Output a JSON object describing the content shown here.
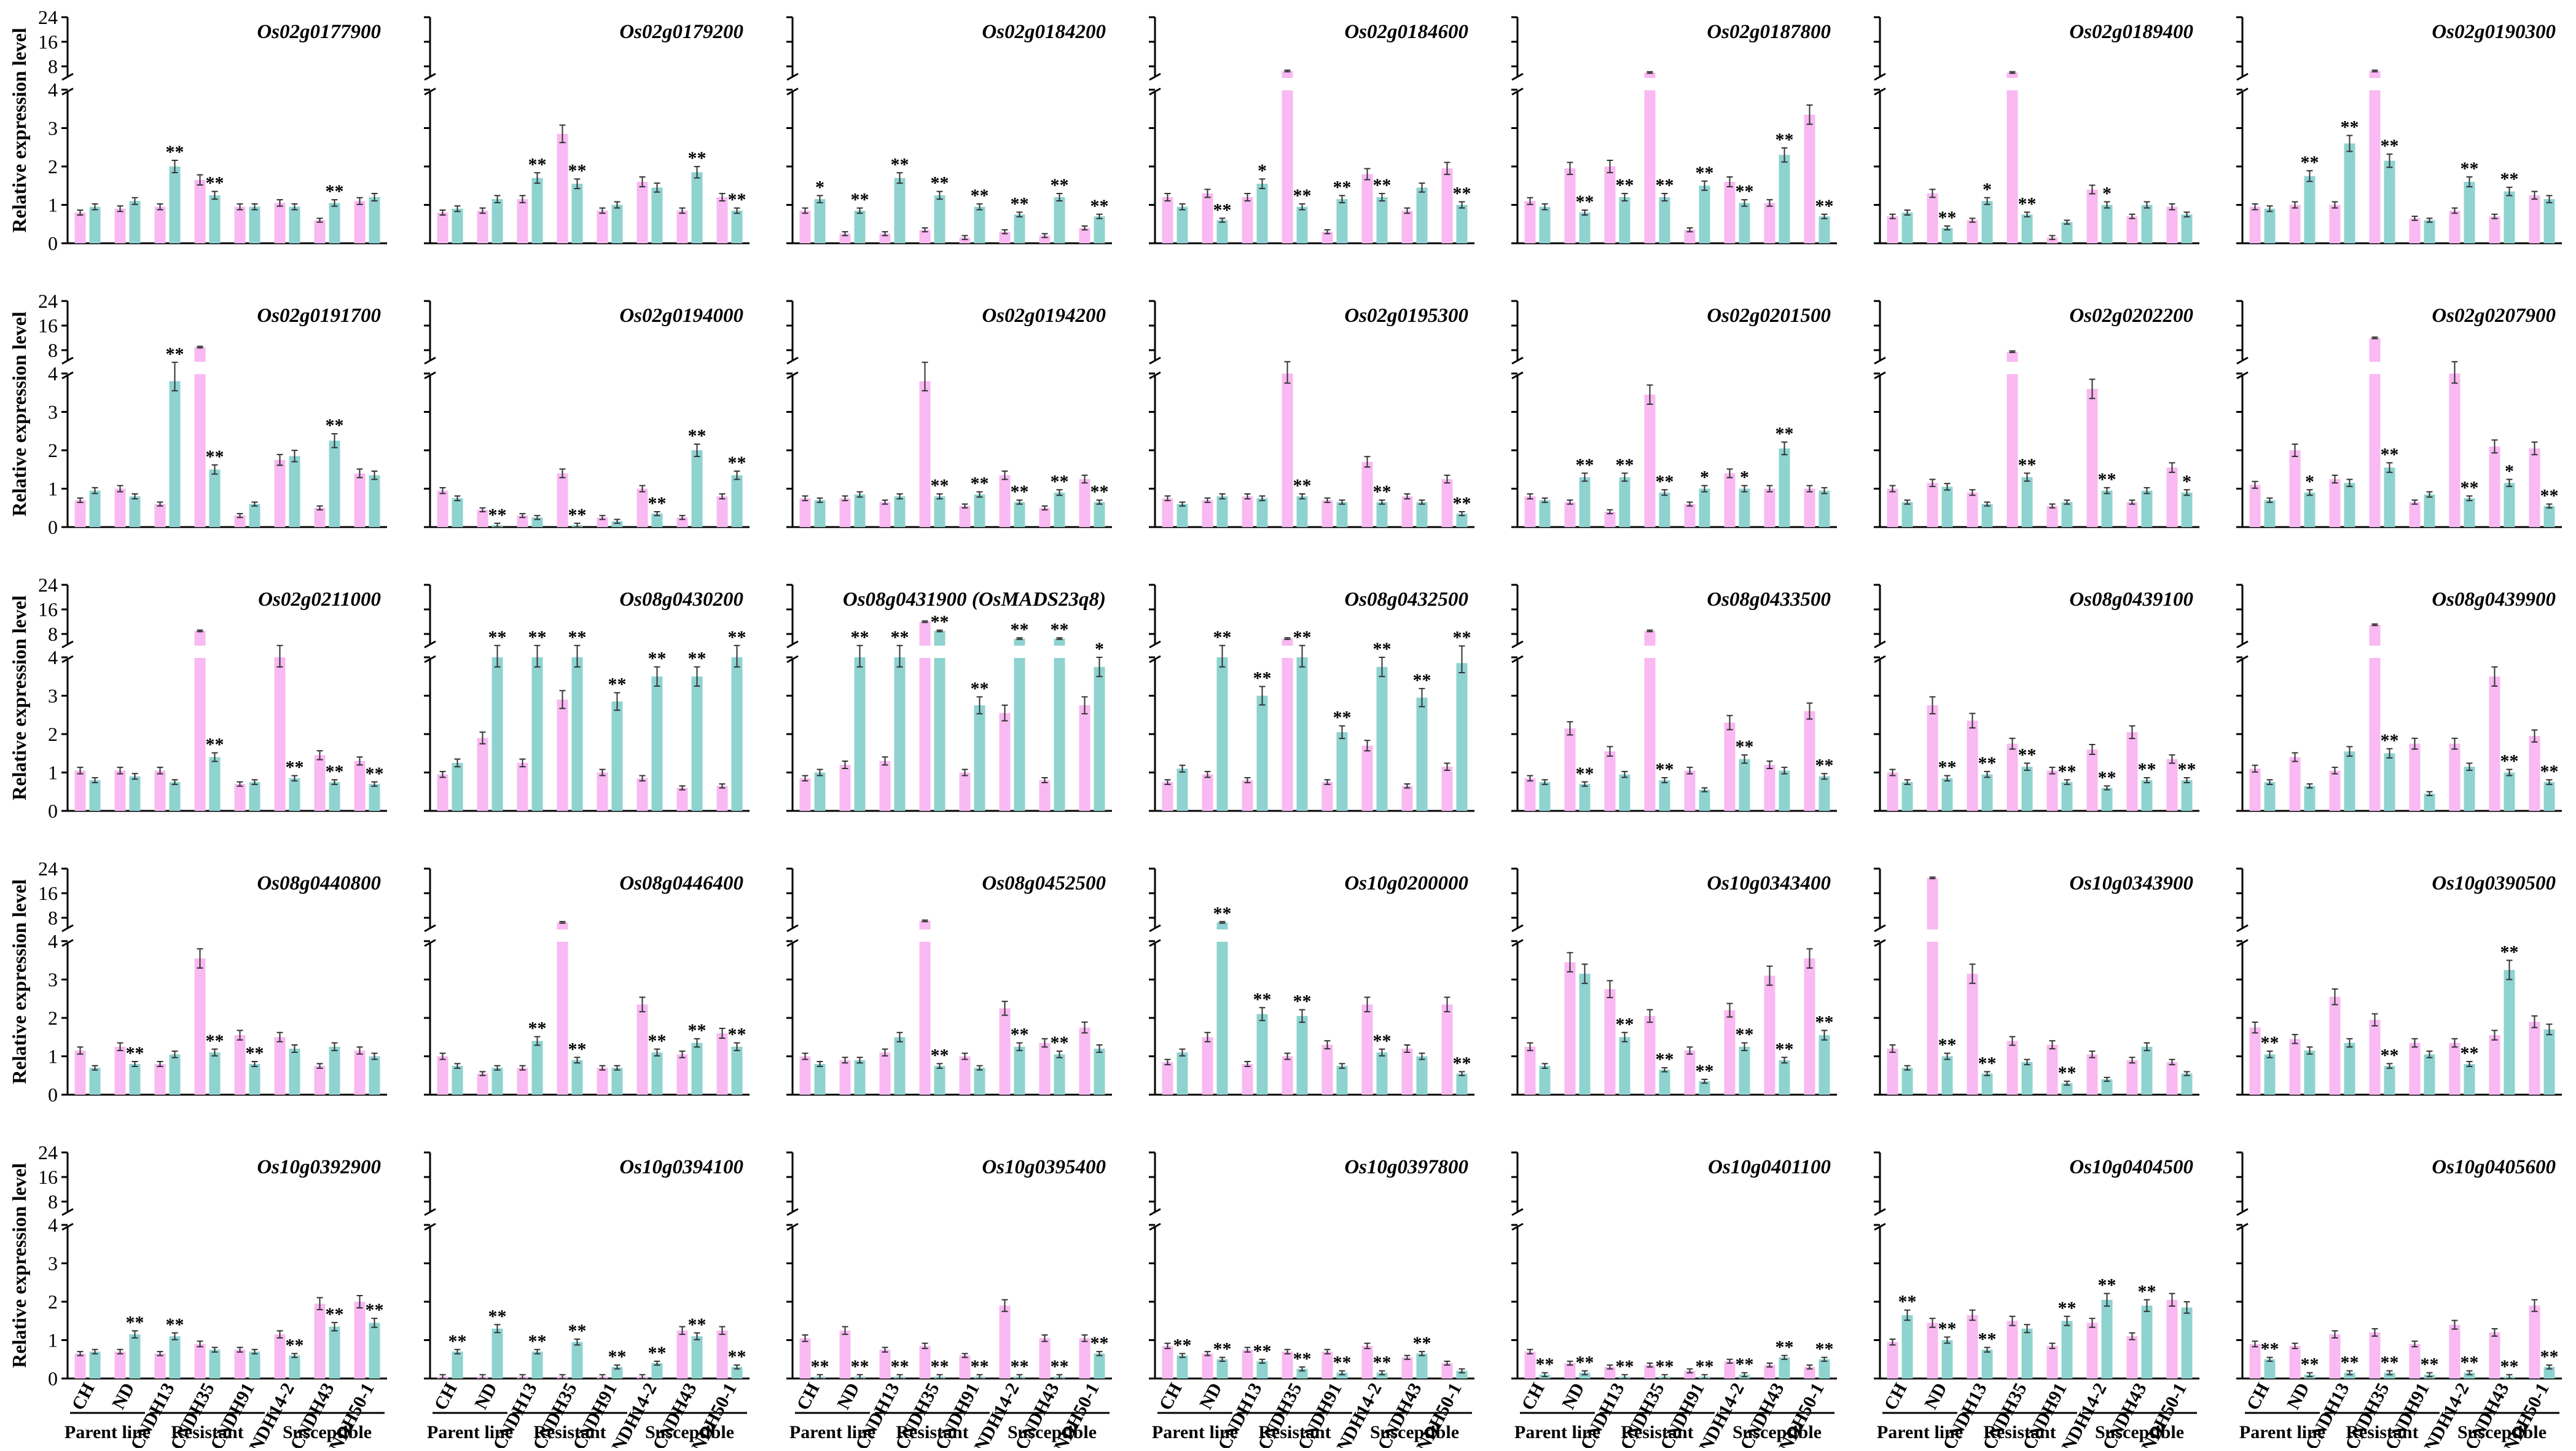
{
  "chart_data": {
    "type": "bar",
    "figure_title": "",
    "ylabel": "Relative expression level",
    "y_ticks_lower": [
      "0",
      "1",
      "2",
      "3",
      "4"
    ],
    "y_ticks_upper": [
      "8",
      "16",
      "24"
    ],
    "ylim_lower": [
      0,
      4
    ],
    "ylim_upper": [
      4,
      24
    ],
    "categories": [
      "CH",
      "ND",
      "CNDH13",
      "CNDH35",
      "CNDH91",
      "CNDH14-2",
      "CNDH43",
      "CNDH50-1"
    ],
    "groups": [
      {
        "label": "Parent line",
        "from": 0,
        "to": 1
      },
      {
        "label": "Resistant",
        "from": 2,
        "to": 4
      },
      {
        "label": "Susceptible",
        "from": 5,
        "to": 7
      }
    ],
    "series": [
      {
        "name": "pink",
        "color": "#f9b9f2"
      },
      {
        "name": "teal",
        "color": "#8ed3d0"
      }
    ],
    "panels": [
      {
        "gene": "Os02g0177900",
        "pink": [
          0.8,
          0.9,
          0.95,
          1.65,
          0.95,
          1.05,
          0.6,
          1.1
        ],
        "teal": [
          0.95,
          1.1,
          2.0,
          1.25,
          0.95,
          0.95,
          1.05,
          1.2
        ],
        "sig": [
          "",
          "",
          "**",
          "**",
          "",
          "",
          "**",
          ""
        ]
      },
      {
        "gene": "Os02g0179200",
        "pink": [
          0.8,
          0.85,
          1.15,
          2.85,
          0.85,
          1.6,
          0.85,
          1.2
        ],
        "teal": [
          0.9,
          1.15,
          1.7,
          1.55,
          1.0,
          1.45,
          1.85,
          0.85
        ],
        "sig": [
          "",
          "",
          "**",
          "**",
          "",
          "",
          "**",
          "**"
        ]
      },
      {
        "gene": "Os02g0184200",
        "pink": [
          0.85,
          0.25,
          0.25,
          0.35,
          0.15,
          0.3,
          0.2,
          0.4
        ],
        "teal": [
          1.15,
          0.85,
          1.7,
          1.25,
          0.95,
          0.75,
          1.2,
          0.7
        ],
        "sig": [
          "*",
          "**",
          "**",
          "**",
          "**",
          "**",
          "**",
          "**"
        ]
      },
      {
        "gene": "Os02g0184600",
        "pink": [
          1.2,
          1.3,
          1.2,
          6.5,
          0.3,
          1.8,
          0.85,
          1.95
        ],
        "teal": [
          0.95,
          0.6,
          1.55,
          0.95,
          1.15,
          1.2,
          1.45,
          1.0
        ],
        "sig": [
          "",
          "**",
          "*",
          "**",
          "**",
          "**",
          "",
          "**"
        ]
      },
      {
        "gene": "Os02g0187800",
        "pink": [
          1.1,
          1.95,
          2.0,
          6.0,
          0.35,
          1.6,
          1.05,
          3.35
        ],
        "teal": [
          0.95,
          0.8,
          1.2,
          1.2,
          1.5,
          1.05,
          2.3,
          0.7
        ],
        "sig": [
          "",
          "**",
          "**",
          "**",
          "**",
          "**",
          "**",
          "**"
        ]
      },
      {
        "gene": "Os02g0189400",
        "pink": [
          0.7,
          1.3,
          0.6,
          6.0,
          0.15,
          1.4,
          0.7,
          0.95
        ],
        "teal": [
          0.8,
          0.4,
          1.1,
          0.75,
          0.55,
          1.0,
          1.0,
          0.75
        ],
        "sig": [
          "",
          "**",
          "*",
          "**",
          "",
          "*",
          "",
          ""
        ]
      },
      {
        "gene": "Os02g0190300",
        "pink": [
          0.95,
          1.0,
          1.0,
          6.5,
          0.65,
          0.85,
          0.7,
          1.25
        ],
        "teal": [
          0.9,
          1.75,
          2.6,
          2.15,
          0.6,
          1.6,
          1.35,
          1.15
        ],
        "sig": [
          "",
          "**",
          "**",
          "**",
          "",
          "**",
          "**",
          ""
        ]
      },
      {
        "gene": "Os02g0191700",
        "pink": [
          0.7,
          1.0,
          0.6,
          9.0,
          0.3,
          1.75,
          0.5,
          1.4
        ],
        "teal": [
          0.95,
          0.8,
          3.8,
          1.5,
          0.6,
          1.85,
          2.25,
          1.35
        ],
        "sig": [
          "",
          "",
          "**",
          "**",
          "",
          "",
          "**",
          ""
        ]
      },
      {
        "gene": "Os02g0194000",
        "pink": [
          0.95,
          0.45,
          0.3,
          1.4,
          0.25,
          1.0,
          0.25,
          0.8
        ],
        "teal": [
          0.75,
          0.05,
          0.25,
          0.05,
          0.15,
          0.35,
          2.0,
          1.35
        ],
        "sig": [
          "",
          "**",
          "",
          "**",
          "",
          "**",
          "**",
          "**"
        ]
      },
      {
        "gene": "Os02g0194200",
        "pink": [
          0.75,
          0.75,
          0.65,
          3.8,
          0.55,
          1.35,
          0.5,
          1.25
        ],
        "teal": [
          0.7,
          0.85,
          0.8,
          0.8,
          0.85,
          0.65,
          0.9,
          0.65
        ],
        "sig": [
          "",
          "",
          "",
          "**",
          "**",
          "**",
          "**",
          "**"
        ]
      },
      {
        "gene": "Os02g0195300",
        "pink": [
          0.75,
          0.7,
          0.8,
          4.0,
          0.7,
          1.7,
          0.8,
          1.25
        ],
        "teal": [
          0.6,
          0.8,
          0.75,
          0.8,
          0.65,
          0.65,
          0.65,
          0.35
        ],
        "sig": [
          "",
          "",
          "",
          "**",
          "",
          "**",
          "",
          "**"
        ]
      },
      {
        "gene": "Os02g0201500",
        "pink": [
          0.8,
          0.65,
          0.4,
          3.45,
          0.6,
          1.4,
          1.0,
          1.0
        ],
        "teal": [
          0.7,
          1.3,
          1.3,
          0.9,
          1.0,
          1.0,
          2.05,
          0.95
        ],
        "sig": [
          "",
          "**",
          "**",
          "**",
          "*",
          "*",
          "**",
          ""
        ]
      },
      {
        "gene": "Os02g0202200",
        "pink": [
          1.0,
          1.15,
          0.9,
          7.5,
          0.55,
          3.6,
          0.65,
          1.55
        ],
        "teal": [
          0.65,
          1.05,
          0.6,
          1.3,
          0.65,
          0.95,
          0.95,
          0.9
        ],
        "sig": [
          "",
          "",
          "",
          "**",
          "",
          "**",
          "",
          "*"
        ]
      },
      {
        "gene": "Os02g0207900",
        "pink": [
          1.1,
          2.0,
          1.25,
          12.0,
          0.65,
          4.0,
          2.1,
          2.05
        ],
        "teal": [
          0.7,
          0.9,
          1.15,
          1.55,
          0.85,
          0.75,
          1.15,
          0.55
        ],
        "sig": [
          "",
          "*",
          "",
          "**",
          "",
          "**",
          "*",
          "**"
        ]
      },
      {
        "gene": "Os02g0211000",
        "pink": [
          1.05,
          1.05,
          1.05,
          9.0,
          0.7,
          4.0,
          1.45,
          1.3
        ],
        "teal": [
          0.8,
          0.9,
          0.75,
          1.4,
          0.75,
          0.85,
          0.75,
          0.7
        ],
        "sig": [
          "",
          "",
          "",
          "**",
          "",
          "**",
          "**",
          "**"
        ]
      },
      {
        "gene": "Os08g0430200",
        "pink": [
          0.95,
          1.9,
          1.25,
          2.9,
          1.0,
          0.85,
          0.6,
          0.65
        ],
        "teal": [
          1.25,
          4.0,
          4.0,
          4.0,
          2.85,
          3.5,
          3.5,
          4.0
        ],
        "sig": [
          "",
          "**",
          "**",
          "**",
          "**",
          "**",
          "**",
          "**"
        ]
      },
      {
        "gene": "Os08g0431900 (OsMADS23q8)",
        "pink": [
          0.85,
          1.2,
          1.3,
          12.0,
          1.0,
          2.55,
          0.8,
          2.75
        ],
        "teal": [
          1.0,
          4.0,
          4.0,
          9.0,
          2.75,
          6.5,
          6.5,
          3.75
        ],
        "sig": [
          "",
          "**",
          "**",
          "**",
          "**",
          "**",
          "**",
          "*"
        ]
      },
      {
        "gene": "Os08g0432500",
        "pink": [
          0.75,
          0.95,
          0.8,
          6.5,
          0.75,
          1.7,
          0.65,
          1.15
        ],
        "teal": [
          1.1,
          4.0,
          3.0,
          4.0,
          2.05,
          3.75,
          2.95,
          3.85
        ],
        "sig": [
          "",
          "**",
          "**",
          "**",
          "**",
          "**",
          "**",
          "**"
        ]
      },
      {
        "gene": "Os08g0433500",
        "pink": [
          0.85,
          2.15,
          1.55,
          9.0,
          1.05,
          2.3,
          1.2,
          2.6
        ],
        "teal": [
          0.75,
          0.7,
          0.95,
          0.8,
          0.55,
          1.35,
          1.05,
          0.9
        ],
        "sig": [
          "",
          "**",
          "",
          "**",
          "",
          "**",
          "",
          "**"
        ]
      },
      {
        "gene": "Os08g0439100",
        "pink": [
          1.0,
          2.75,
          2.35,
          1.75,
          1.05,
          1.6,
          2.05,
          1.35
        ],
        "teal": [
          0.75,
          0.85,
          0.95,
          1.15,
          0.75,
          0.6,
          0.8,
          0.8
        ],
        "sig": [
          "",
          "**",
          "**",
          "**",
          "**",
          "**",
          "**",
          "**"
        ]
      },
      {
        "gene": "Os08g0439900",
        "pink": [
          1.1,
          1.4,
          1.05,
          11.0,
          1.75,
          1.75,
          3.5,
          1.95
        ],
        "teal": [
          0.75,
          0.65,
          1.55,
          1.5,
          0.45,
          1.15,
          1.0,
          0.75
        ],
        "sig": [
          "",
          "",
          "",
          "**",
          "",
          "",
          "**",
          "**"
        ]
      },
      {
        "gene": "Os08g0440800",
        "pink": [
          1.15,
          1.25,
          0.8,
          3.55,
          1.55,
          1.5,
          0.75,
          1.15
        ],
        "teal": [
          0.7,
          0.8,
          1.05,
          1.1,
          0.8,
          1.2,
          1.25,
          1.0
        ],
        "sig": [
          "",
          "**",
          "",
          "**",
          "**",
          "",
          "",
          ""
        ]
      },
      {
        "gene": "Os08g0446400",
        "pink": [
          1.0,
          0.55,
          0.7,
          6.5,
          0.7,
          2.35,
          1.05,
          1.6
        ],
        "teal": [
          0.75,
          0.7,
          1.4,
          0.9,
          0.7,
          1.1,
          1.35,
          1.25
        ],
        "sig": [
          "",
          "",
          "**",
          "**",
          "",
          "**",
          "**",
          "**"
        ]
      },
      {
        "gene": "Os08g0452500",
        "pink": [
          1.0,
          0.9,
          1.1,
          7.0,
          1.0,
          2.25,
          1.35,
          1.75
        ],
        "teal": [
          0.8,
          0.9,
          1.5,
          0.75,
          0.7,
          1.25,
          1.05,
          1.2
        ],
        "sig": [
          "",
          "",
          "",
          "**",
          "",
          "**",
          "**",
          ""
        ]
      },
      {
        "gene": "Os10g0200000",
        "pink": [
          0.85,
          1.5,
          0.8,
          1.0,
          1.3,
          2.35,
          1.2,
          2.35
        ],
        "teal": [
          1.1,
          6.5,
          2.1,
          2.05,
          0.75,
          1.1,
          1.0,
          0.55
        ],
        "sig": [
          "",
          "**",
          "**",
          "**",
          "",
          "**",
          "",
          "**"
        ]
      },
      {
        "gene": "Os10g0343400",
        "pink": [
          1.25,
          3.45,
          2.75,
          2.05,
          1.15,
          2.2,
          3.1,
          3.55
        ],
        "teal": [
          0.75,
          3.15,
          1.5,
          0.65,
          0.35,
          1.25,
          0.9,
          1.55
        ],
        "sig": [
          "",
          "",
          "**",
          "**",
          "**",
          "**",
          "**",
          "**"
        ]
      },
      {
        "gene": "Os10g0343900",
        "pink": [
          1.2,
          21.0,
          3.15,
          1.4,
          1.3,
          1.05,
          0.9,
          0.85
        ],
        "teal": [
          0.7,
          1.0,
          0.55,
          0.85,
          0.3,
          0.4,
          1.25,
          0.55
        ],
        "sig": [
          "",
          "**",
          "**",
          "",
          "**",
          "",
          "",
          ""
        ]
      },
      {
        "gene": "Os10g0390500",
        "pink": [
          1.75,
          1.45,
          2.55,
          1.95,
          1.35,
          1.35,
          1.55,
          1.9
        ],
        "teal": [
          1.05,
          1.15,
          1.35,
          0.75,
          1.05,
          0.8,
          3.25,
          1.7
        ],
        "sig": [
          "**",
          "",
          "",
          "**",
          "",
          "**",
          "**",
          ""
        ]
      },
      {
        "gene": "Os10g0392900",
        "pink": [
          0.65,
          0.7,
          0.65,
          0.9,
          0.75,
          1.15,
          1.95,
          2.0
        ],
        "teal": [
          0.7,
          1.15,
          1.1,
          0.75,
          0.7,
          0.6,
          1.35,
          1.45
        ],
        "sig": [
          "",
          "**",
          "**",
          "",
          "",
          "**",
          "**",
          "**"
        ]
      },
      {
        "gene": "Os10g0394100",
        "pink": [
          0.05,
          0.05,
          0.05,
          0.05,
          0.05,
          0.05,
          1.25,
          1.25
        ],
        "teal": [
          0.7,
          1.3,
          0.7,
          0.95,
          0.3,
          0.4,
          1.1,
          0.3
        ],
        "sig": [
          "**",
          "**",
          "**",
          "**",
          "**",
          "**",
          "**",
          "**"
        ]
      },
      {
        "gene": "Os10g0395400",
        "pink": [
          1.05,
          1.25,
          0.75,
          0.85,
          0.6,
          1.9,
          1.05,
          1.05
        ],
        "teal": [
          0.05,
          0.05,
          0.05,
          0.05,
          0.05,
          0.05,
          0.05,
          0.65
        ],
        "sig": [
          "**",
          "**",
          "**",
          "**",
          "**",
          "**",
          "**",
          "**"
        ]
      },
      {
        "gene": "Os10g0397800",
        "pink": [
          0.85,
          0.65,
          0.75,
          0.7,
          0.7,
          0.85,
          0.55,
          0.4
        ],
        "teal": [
          0.6,
          0.5,
          0.45,
          0.25,
          0.15,
          0.15,
          0.65,
          0.2
        ],
        "sig": [
          "**",
          "**",
          "**",
          "**",
          "**",
          "**",
          "**",
          ""
        ]
      },
      {
        "gene": "Os10g0401100",
        "pink": [
          0.7,
          0.4,
          0.3,
          0.35,
          0.2,
          0.45,
          0.35,
          0.3
        ],
        "teal": [
          0.1,
          0.15,
          0.05,
          0.05,
          0.05,
          0.1,
          0.55,
          0.5
        ],
        "sig": [
          "**",
          "**",
          "**",
          "**",
          "**",
          "**",
          "**",
          "**"
        ]
      },
      {
        "gene": "Os10g0404500",
        "pink": [
          0.95,
          1.45,
          1.65,
          1.5,
          0.85,
          1.45,
          1.1,
          2.05
        ],
        "teal": [
          1.65,
          1.0,
          0.75,
          1.3,
          1.5,
          2.05,
          1.9,
          1.85
        ],
        "sig": [
          "**",
          "**",
          "**",
          "",
          "**",
          "**",
          "**",
          ""
        ]
      },
      {
        "gene": "Os10g0405600",
        "pink": [
          0.9,
          0.85,
          1.15,
          1.2,
          0.9,
          1.4,
          1.2,
          1.9
        ],
        "teal": [
          0.5,
          0.1,
          0.15,
          0.15,
          0.1,
          0.15,
          0.05,
          0.3
        ],
        "sig": [
          "**",
          "**",
          "**",
          "**",
          "**",
          "**",
          "**",
          "**"
        ]
      }
    ]
  }
}
